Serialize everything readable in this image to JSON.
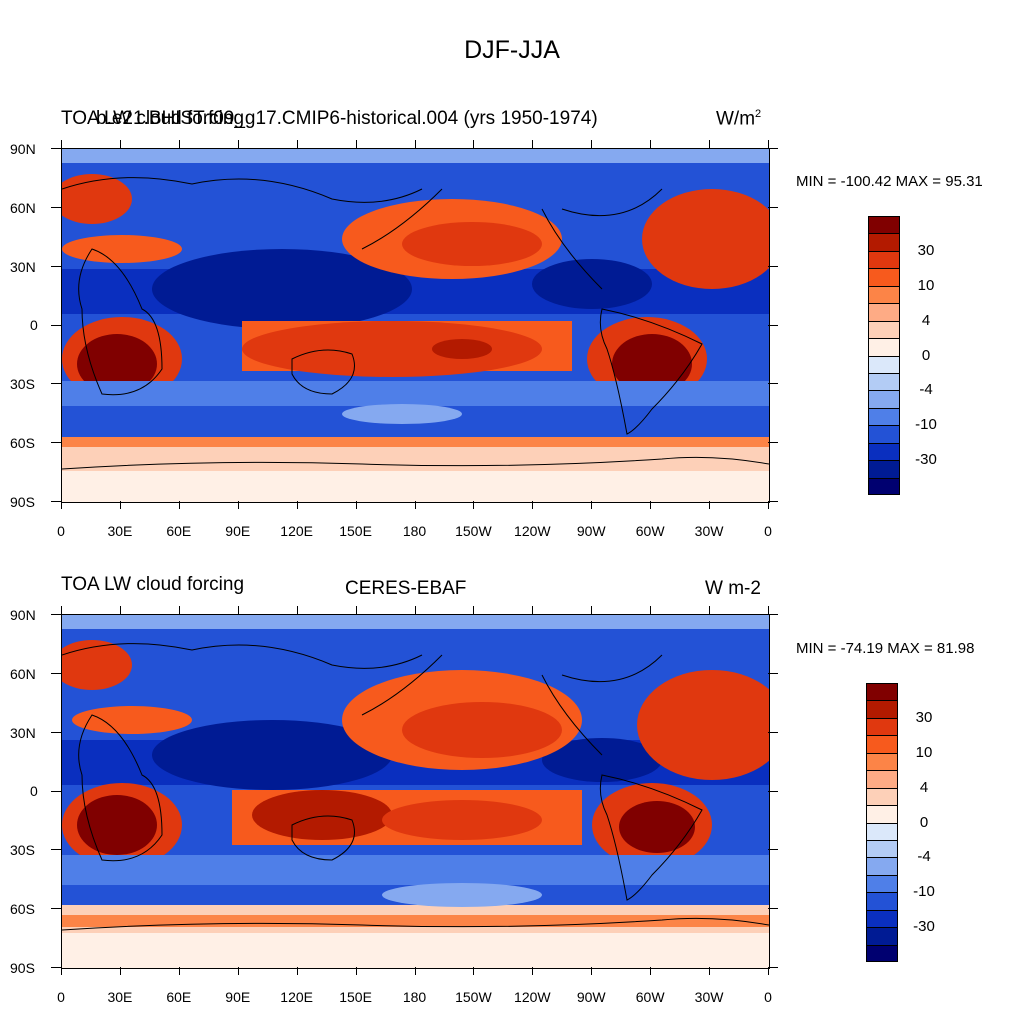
{
  "figure": {
    "title": "DJF-JJA"
  },
  "panels": [
    {
      "left_title": "TOA LW cloud forcing",
      "center_title": "b.e21.BHIST.f09_g17.CMIP6-historical.004 (yrs 1950-1974)",
      "units_base": "W/m",
      "units_exp": "2",
      "min_max": "MIN = -100.42 MAX =  95.31"
    },
    {
      "left_title": "TOA LW cloud forcing",
      "center_title": "CERES-EBAF",
      "units_base": "W m-2",
      "units_exp": "",
      "min_max": "MIN = -74.19 MAX =  81.98"
    }
  ],
  "axes": {
    "lat_labels": [
      "90N",
      "60N",
      "30N",
      "0",
      "30S",
      "60S",
      "90S"
    ],
    "lon_labels": [
      "0",
      "30E",
      "60E",
      "90E",
      "120E",
      "150E",
      "180",
      "150W",
      "120W",
      "90W",
      "60W",
      "30W",
      "0"
    ]
  },
  "colorbar": {
    "colors": [
      "#800000",
      "#b31a00",
      "#e0380f",
      "#f75a1d",
      "#fc8447",
      "#feab85",
      "#fdd0b8",
      "#fff0e6",
      "#dbe8fa",
      "#b3ccf5",
      "#85a9f0",
      "#4f7fe8",
      "#2352d6",
      "#0a2fbf",
      "#001b94",
      "#000070"
    ],
    "labels": [
      "30",
      "10",
      "4",
      "0",
      "-4",
      "-10",
      "-30"
    ]
  }
}
